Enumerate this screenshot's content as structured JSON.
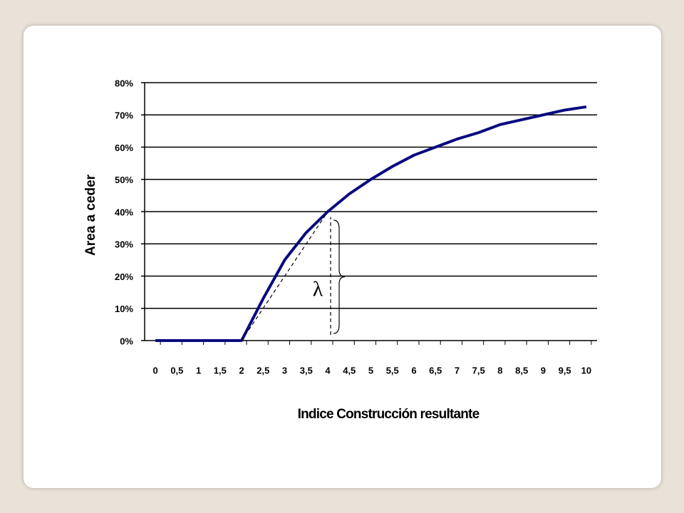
{
  "chart_data": {
    "type": "line",
    "xlabel": "Indice Construcción  resultante",
    "ylabel": "Area a ceder",
    "annotation": "λ",
    "x": [
      0,
      0.5,
      1,
      1.5,
      2,
      2.5,
      3,
      3.5,
      4,
      4.5,
      5,
      5.5,
      6,
      6.5,
      7,
      7.5,
      8,
      8.5,
      9,
      9.5,
      10
    ],
    "series": [
      {
        "name": "Area a ceder",
        "color": "#0a0a80",
        "values": [
          0,
          0,
          0,
          0,
          0,
          13,
          25,
          33.5,
          40,
          45.5,
          50,
          54,
          57.5,
          60,
          62.5,
          64.5,
          67,
          68.5,
          70,
          71.5,
          72.5
        ]
      }
    ],
    "xlim": [
      -0.25,
      10.25
    ],
    "xticks": [
      0,
      {
        "value": 0.5,
        "label": "0,5"
      },
      1,
      {
        "value": 1.5,
        "label": "1,5"
      },
      2,
      {
        "value": 2.5,
        "label": "2,5"
      },
      3,
      {
        "value": 3.5,
        "label": "3,5"
      },
      4,
      {
        "value": 4.5,
        "label": "4,5"
      },
      5,
      {
        "value": 5.5,
        "label": "5,5"
      },
      6,
      {
        "value": 6.5,
        "label": "6,5"
      },
      7,
      {
        "value": 7.5,
        "label": "7,5"
      },
      8,
      {
        "value": 8.5,
        "label": "8,5"
      },
      9,
      {
        "value": 9.5,
        "label": "9,5"
      },
      10
    ],
    "ylim": [
      0,
      80
    ],
    "yticks": [
      {
        "value": 0,
        "label": "0%"
      },
      {
        "value": 10,
        "label": "10%"
      },
      {
        "value": 20,
        "label": "20%"
      },
      {
        "value": 30,
        "label": "30%"
      },
      {
        "value": 40,
        "label": "40%"
      },
      {
        "value": 50,
        "label": "50%"
      },
      {
        "value": 60,
        "label": "60%"
      },
      {
        "value": 70,
        "label": "70%"
      },
      {
        "value": 80,
        "label": "80%"
      }
    ],
    "grid": true
  }
}
